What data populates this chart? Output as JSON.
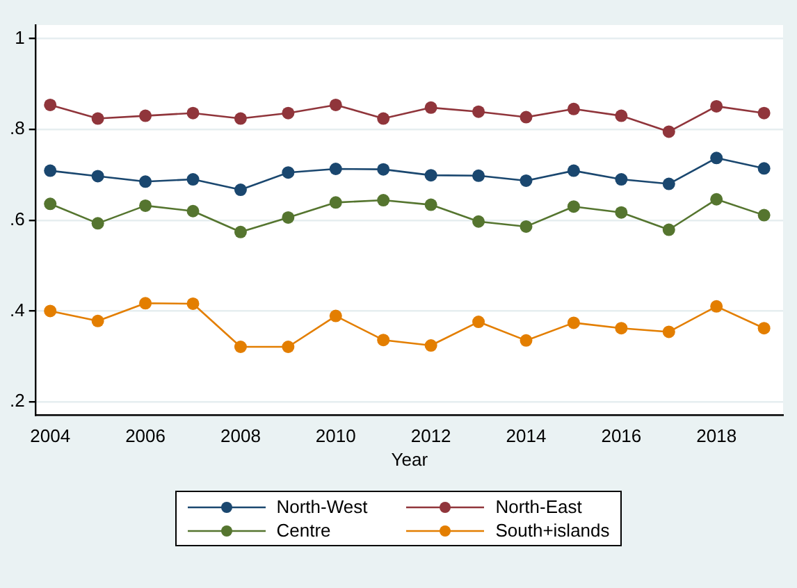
{
  "chart_data": {
    "type": "line",
    "xlabel": "Year",
    "x": [
      2004,
      2005,
      2006,
      2007,
      2008,
      2009,
      2010,
      2011,
      2012,
      2013,
      2014,
      2015,
      2016,
      2017,
      2018,
      2019
    ],
    "series": [
      {
        "name": "North-West",
        "color": "#1a476f",
        "values": [
          0.709,
          0.697,
          0.685,
          0.69,
          0.667,
          0.705,
          0.713,
          0.712,
          0.699,
          0.698,
          0.687,
          0.709,
          0.69,
          0.68,
          0.737,
          0.714
        ]
      },
      {
        "name": "North-East",
        "color": "#90353b",
        "values": [
          0.854,
          0.824,
          0.83,
          0.836,
          0.824,
          0.836,
          0.854,
          0.824,
          0.848,
          0.839,
          0.827,
          0.845,
          0.83,
          0.795,
          0.851,
          0.836
        ]
      },
      {
        "name": "Centre",
        "color": "#55752f",
        "values": [
          0.636,
          0.593,
          0.632,
          0.62,
          0.574,
          0.606,
          0.639,
          0.644,
          0.634,
          0.597,
          0.586,
          0.63,
          0.617,
          0.579,
          0.646,
          0.611
        ]
      },
      {
        "name": "South+islands",
        "color": "#e37e00",
        "values": [
          0.4,
          0.378,
          0.417,
          0.416,
          0.321,
          0.321,
          0.389,
          0.336,
          0.324,
          0.376,
          0.335,
          0.374,
          0.362,
          0.354,
          0.41,
          0.362
        ]
      }
    ],
    "xlim": [
      2003.7,
      2019.4
    ],
    "xticks": [
      2004,
      2006,
      2008,
      2010,
      2012,
      2014,
      2016,
      2018
    ],
    "ylim": [
      0.17,
      1.03
    ],
    "yticks": [
      {
        "value": 0.2,
        "label": ".2"
      },
      {
        "value": 0.4,
        "label": ".4"
      },
      {
        "value": 0.6,
        "label": ".6"
      },
      {
        "value": 0.8,
        "label": ".8"
      },
      1
    ],
    "grid": "y",
    "legend": "bottom",
    "marker": "circle",
    "line_style": "solid"
  }
}
